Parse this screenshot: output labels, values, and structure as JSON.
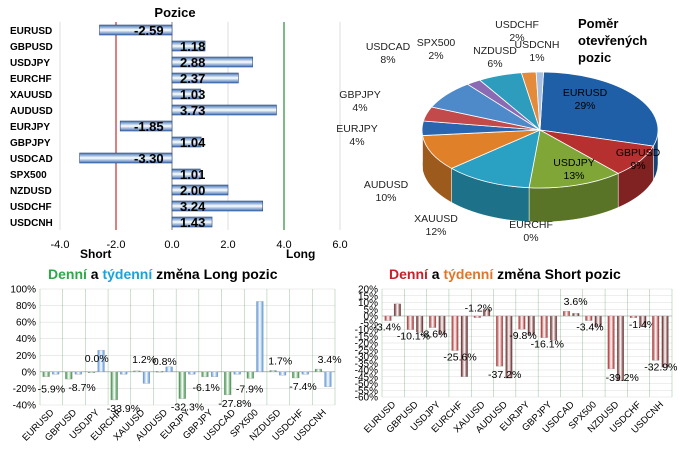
{
  "chart_data": [
    {
      "type": "bar",
      "orientation": "horizontal",
      "title": "Pozice",
      "categories": [
        "EURUSD",
        "GBPUSD",
        "USDJPY",
        "EURCHF",
        "XAUUSD",
        "AUDUSD",
        "EURJPY",
        "GBPJPY",
        "USDCAD",
        "SPX500",
        "NZDUSD",
        "USDCHF",
        "USDCNH"
      ],
      "values": [
        -2.59,
        1.18,
        2.88,
        2.37,
        1.03,
        3.73,
        -1.85,
        1.04,
        -3.3,
        1.01,
        2.0,
        3.24,
        1.43
      ],
      "value_labels": [
        "-2.59",
        "1.18",
        "2.88",
        "2.37",
        "1.03",
        "3.73",
        "-1.85",
        "1.04",
        "-3.30",
        "1.01",
        "2.00",
        "3.24",
        "1.43"
      ],
      "xlim": [
        -4.0,
        6.0
      ],
      "x_ticks": [
        "-4.0",
        "-2.0",
        "0.0",
        "2.0",
        "4.0",
        "6.0"
      ],
      "annotations": [
        "Short",
        "Long"
      ]
    },
    {
      "type": "pie",
      "title": "Poměr otevřených pozic",
      "labels": [
        "EURUSD",
        "GBPUSD",
        "USDJPY",
        "EURCHF",
        "XAUUSD",
        "AUDUSD",
        "EURJPY",
        "GBPJPY",
        "USDCAD",
        "SPX500",
        "NZDUSD",
        "USDCHF",
        "USDCNH"
      ],
      "values": [
        29,
        9,
        13,
        0,
        12,
        10,
        4,
        4,
        8,
        2,
        6,
        2,
        1
      ],
      "value_labels": [
        "29%",
        "9%",
        "13%",
        "0%",
        "12%",
        "10%",
        "4%",
        "4%",
        "8%",
        "2%",
        "6%",
        "2%",
        "1%"
      ],
      "colors": [
        "#1f5fa8",
        "#b5302f",
        "#7fa637",
        "#6b4b96",
        "#2aa1c2",
        "#e0812a",
        "#2a66b0",
        "#c24a4a",
        "#4e8aca",
        "#8a6bb3",
        "#2e9cbd",
        "#e38b3a",
        "#a8c0e0"
      ]
    },
    {
      "type": "bar",
      "title_parts": [
        "Denní",
        " a ",
        "týdenní",
        " změna Long pozic"
      ],
      "categories": [
        "EURUSD",
        "GBPUSD",
        "USDJPY",
        "EURCHF",
        "XAUUSD",
        "AUDUSD",
        "EURJPY",
        "GBPJPY",
        "USDCAD",
        "SPX500",
        "NZDUSD",
        "USDCHF",
        "USDCNH"
      ],
      "series": [
        {
          "values": [
            -5.9,
            -8.7,
            0.0,
            -33.9,
            1.2,
            0.8,
            -32.3,
            -6.1,
            -27.8,
            -7.9,
            1.7,
            -7.4,
            3.4
          ]
        },
        {
          "values": [
            -3,
            -3,
            26,
            -3,
            -14,
            6,
            -3,
            -6,
            -3,
            85,
            -4,
            -3,
            -18
          ]
        }
      ],
      "value_labels": [
        "-5.9%",
        "-8.7%",
        "0.0%",
        "-33.9%",
        "1.2%",
        "0.8%",
        "-32.3%",
        "-6.1%",
        "-27.8%",
        "-7.9%",
        "1.7%",
        "-7.4%",
        "3.4%"
      ],
      "ylim": [
        -40,
        100
      ],
      "y_ticks": [
        "100%",
        "80%",
        "60%",
        "40%",
        "20%",
        "0%",
        "-20%",
        "-40%"
      ]
    },
    {
      "type": "bar",
      "title_parts": [
        "Denní",
        " a ",
        "týdenní",
        " změna Short pozic"
      ],
      "categories": [
        "EURUSD",
        "GBPUSD",
        "USDJPY",
        "EURCHF",
        "XAUUSD",
        "AUDUSD",
        "EURJPY",
        "GBPJPY",
        "USDCAD",
        "SPX500",
        "NZDUSD",
        "USDCHF",
        "USDCNH"
      ],
      "series": [
        {
          "values": [
            -3.4,
            -10.1,
            -8.6,
            -25.6,
            -1.2,
            -37.2,
            -9.8,
            -16.1,
            3.6,
            -3.4,
            -39.2,
            -1.4,
            -32.9
          ]
        },
        {
          "values": [
            9,
            -12,
            -14,
            -45,
            5,
            -46,
            -14,
            -18,
            2,
            -8,
            -48,
            -8,
            -38
          ]
        }
      ],
      "value_labels": [
        "-3.4%",
        "-10.1%",
        "-8.6%",
        "-25.6%",
        "-1.2%",
        "-37.2%",
        "-9.8%",
        "-16.1%",
        "3.6%",
        "-3.4%",
        "-39.2%",
        "-1.4%",
        "-32.9%"
      ],
      "ylim": [
        -60,
        20
      ],
      "y_ticks": [
        "20%",
        "15%",
        "10%",
        "5%",
        "0%",
        "-5%",
        "-10%",
        "-15%",
        "-20%",
        "-25%",
        "-30%",
        "-35%",
        "-40%",
        "-45%",
        "-50%",
        "-55%",
        "-60%"
      ]
    }
  ]
}
